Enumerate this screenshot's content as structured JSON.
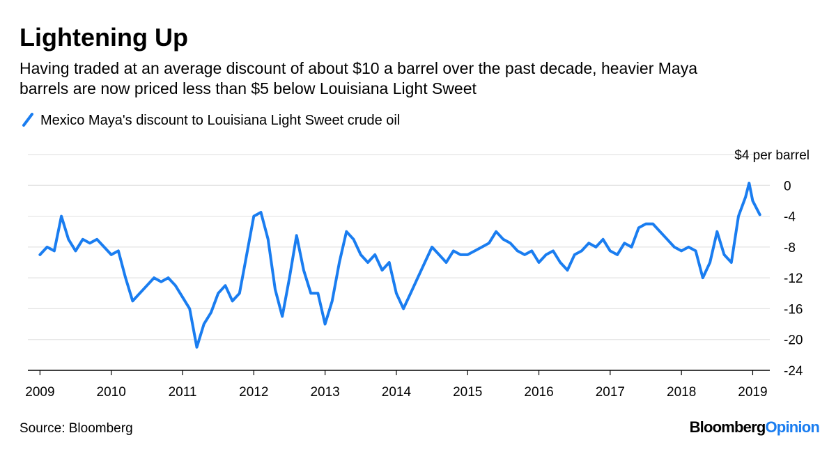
{
  "chart_data": {
    "type": "line",
    "title": "Lightening Up",
    "subtitle": [
      "Having traded at an average discount of about $10 a barrel over the past decade, heavier Maya",
      "barrels are now priced less than $5 below Louisiana Light Sweet"
    ],
    "source": "Source: Bloomberg",
    "logo": {
      "main": "Bloomberg",
      "accent": "Opinion"
    },
    "x": [
      2009.0,
      2009.1,
      2009.2,
      2009.3,
      2009.4,
      2009.5,
      2009.6,
      2009.7,
      2009.8,
      2009.9,
      2010.0,
      2010.1,
      2010.2,
      2010.3,
      2010.4,
      2010.5,
      2010.6,
      2010.7,
      2010.8,
      2010.9,
      2011.0,
      2011.1,
      2011.2,
      2011.3,
      2011.4,
      2011.5,
      2011.6,
      2011.7,
      2011.8,
      2011.9,
      2012.0,
      2012.1,
      2012.2,
      2012.3,
      2012.4,
      2012.5,
      2012.6,
      2012.7,
      2012.8,
      2012.9,
      2013.0,
      2013.1,
      2013.2,
      2013.3,
      2013.4,
      2013.5,
      2013.6,
      2013.7,
      2013.8,
      2013.9,
      2014.0,
      2014.1,
      2014.2,
      2014.3,
      2014.4,
      2014.5,
      2014.6,
      2014.7,
      2014.8,
      2014.9,
      2015.0,
      2015.1,
      2015.2,
      2015.3,
      2015.4,
      2015.5,
      2015.6,
      2015.7,
      2015.8,
      2015.9,
      2016.0,
      2016.1,
      2016.2,
      2016.3,
      2016.4,
      2016.5,
      2016.6,
      2016.7,
      2016.8,
      2016.9,
      2017.0,
      2017.1,
      2017.2,
      2017.3,
      2017.4,
      2017.5,
      2017.6,
      2017.7,
      2017.8,
      2017.9,
      2018.0,
      2018.1,
      2018.2,
      2018.3,
      2018.4,
      2018.5,
      2018.6,
      2018.7,
      2018.8,
      2018.9,
      2018.95,
      2019.0,
      2019.1
    ],
    "series": [
      {
        "name": "Mexico Maya's discount to Louisiana Light Sweet crude oil",
        "color": "#1a7df0",
        "values": [
          -9,
          -8,
          -8.5,
          -4,
          -7,
          -8.5,
          -7,
          -7.5,
          -7,
          -8,
          -9,
          -8.5,
          -12,
          -15,
          -14,
          -13,
          -12,
          -12.5,
          -12,
          -13,
          -14.5,
          -16,
          -21,
          -18,
          -16.5,
          -14,
          -13,
          -15,
          -14,
          -9,
          -4,
          -3.5,
          -7,
          -13.5,
          -17,
          -12,
          -6.5,
          -11,
          -14,
          -14,
          -18,
          -15,
          -10,
          -6,
          -7,
          -9,
          -10,
          -9,
          -11,
          -10,
          -14,
          -16,
          -14,
          -12,
          -10,
          -8,
          -9,
          -10,
          -8.5,
          -9,
          -9,
          -8.5,
          -8,
          -7.5,
          -6,
          -7,
          -7.5,
          -8.5,
          -9,
          -8.5,
          -10,
          -9,
          -8.5,
          -10,
          -11,
          -9,
          -8.5,
          -7.5,
          -8,
          -7,
          -8.5,
          -9,
          -7.5,
          -8,
          -5.5,
          -5,
          -5,
          -6,
          -7,
          -8,
          -8.5,
          -8,
          -8.5,
          -12,
          -10,
          -6,
          -9,
          -10,
          -4,
          -1.5,
          0.3,
          -2,
          -3.8
        ]
      }
    ],
    "xlim": [
      2008.83,
      2019.24
    ],
    "xticks": [
      2009,
      2010,
      2011,
      2012,
      2013,
      2014,
      2015,
      2016,
      2017,
      2018,
      2019
    ],
    "ylim": [
      -24,
      4
    ],
    "yticks": [
      {
        "value": 4,
        "label": "$4 per barrel"
      },
      0,
      -4,
      -8,
      -12,
      -16,
      -20,
      -24
    ],
    "grid": true
  }
}
